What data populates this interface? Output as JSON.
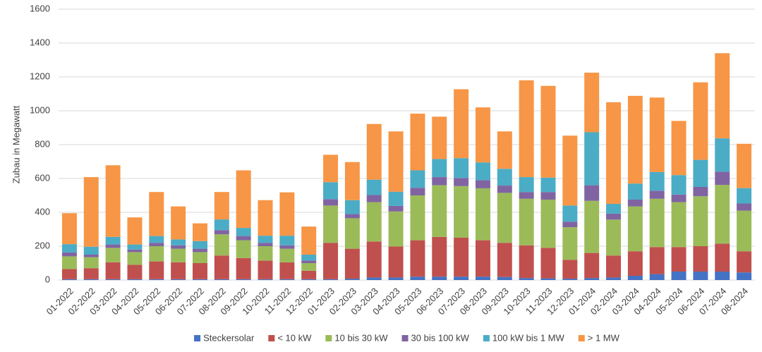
{
  "chart_data": {
    "type": "stacked_bar",
    "y_label": "Zubau in Megawatt",
    "categories": [
      "01-2022",
      "02-2022",
      "03-2022",
      "04-2022",
      "05-2022",
      "06-2022",
      "07-2022",
      "08-2022",
      "09-2022",
      "10-2022",
      "11-2022",
      "12-2022",
      "01-2023",
      "02-2023",
      "03-2023",
      "04-2023",
      "05-2023",
      "06-2023",
      "07-2023",
      "08-2023",
      "09-2023",
      "10-2023",
      "11-2023",
      "12-2023",
      "01-2024",
      "02-2024",
      "03-2024",
      "04-2024",
      "05-2024",
      "06-2024",
      "07-2024",
      "08-2024"
    ],
    "series": [
      {
        "name": "Steckersolar",
        "color": "#4472c4",
        "values": [
          5,
          5,
          5,
          5,
          5,
          5,
          5,
          5,
          5,
          5,
          5,
          5,
          5,
          8,
          15,
          15,
          20,
          20,
          20,
          20,
          18,
          12,
          10,
          8,
          12,
          15,
          25,
          35,
          50,
          50,
          50,
          45
        ]
      },
      {
        "name": "< 10 kW",
        "color": "#c0504d",
        "values": [
          60,
          65,
          100,
          85,
          105,
          100,
          95,
          140,
          125,
          110,
          100,
          50,
          215,
          177,
          213,
          183,
          215,
          235,
          230,
          215,
          202,
          193,
          180,
          112,
          148,
          130,
          145,
          160,
          145,
          150,
          165,
          125
        ]
      },
      {
        "name": "10 bis 30 kW",
        "color": "#9bbb59",
        "values": [
          75,
          65,
          85,
          75,
          90,
          80,
          65,
          125,
          105,
          85,
          80,
          45,
          220,
          180,
          232,
          207,
          265,
          305,
          305,
          307,
          295,
          275,
          285,
          192,
          308,
          212,
          265,
          285,
          265,
          295,
          347,
          240
        ]
      },
      {
        "name": "30 bis 100 kW",
        "color": "#8064a2",
        "values": [
          23,
          15,
          20,
          15,
          20,
          20,
          20,
          25,
          25,
          20,
          20,
          15,
          38,
          25,
          42,
          33,
          45,
          48,
          48,
          48,
          43,
          40,
          45,
          33,
          92,
          35,
          40,
          48,
          45,
          55,
          78,
          42
        ]
      },
      {
        "name": "100 kW bis 1 MW",
        "color": "#4bacc6",
        "values": [
          49,
          47,
          45,
          30,
          40,
          35,
          45,
          63,
          48,
          42,
          57,
          35,
          100,
          82,
          91,
          84,
          103,
          107,
          117,
          105,
          99,
          88,
          85,
          95,
          313,
          58,
          95,
          110,
          115,
          160,
          197,
          91
        ]
      },
      {
        "name": "> 1 MW",
        "color": "#f79646",
        "values": [
          183,
          411,
          423,
          160,
          260,
          195,
          105,
          162,
          340,
          210,
          256,
          166,
          162,
          225,
          329,
          356,
          335,
          250,
          407,
          325,
          221,
          572,
          542,
          413,
          352,
          600,
          518,
          440,
          320,
          458,
          503,
          262
        ]
      }
    ],
    "ylim": [
      0,
      1600
    ],
    "yticks": [
      0,
      200,
      400,
      600,
      800,
      1000,
      1200,
      1400,
      1600
    ],
    "grid": true
  }
}
